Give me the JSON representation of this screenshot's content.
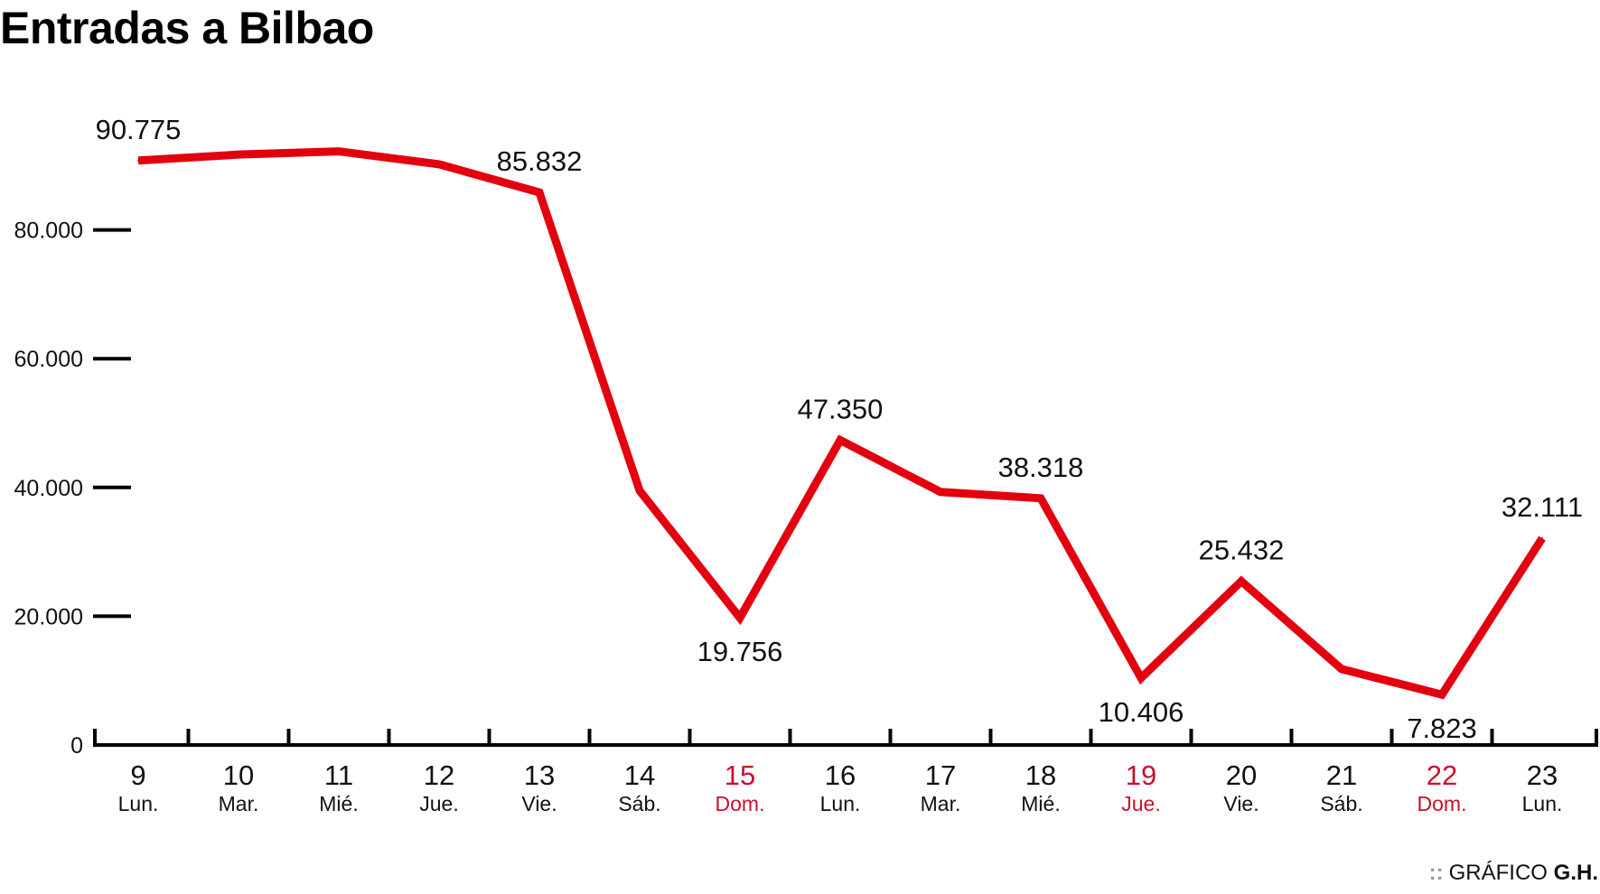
{
  "chart_data": {
    "type": "line",
    "title": "Entradas a Bilbao",
    "xlabel": "",
    "ylabel": "",
    "ylim": [
      0,
      95000
    ],
    "yticks": [
      0,
      20000,
      40000,
      60000,
      80000
    ],
    "ytick_labels": [
      "0",
      "20.000",
      "40.000",
      "60.000",
      "80.000"
    ],
    "categories": [
      "9",
      "10",
      "11",
      "12",
      "13",
      "14",
      "15",
      "16",
      "17",
      "18",
      "19",
      "20",
      "21",
      "22",
      "23"
    ],
    "weekdays": [
      "Lun.",
      "Mar.",
      "Mié.",
      "Jue.",
      "Vie.",
      "Sáb.",
      "Dom.",
      "Lun.",
      "Mar.",
      "Mié.",
      "Jue.",
      "Vie.",
      "Sáb.",
      "Dom.",
      "Lun."
    ],
    "highlighted_days": [
      6,
      10,
      13
    ],
    "series": [
      {
        "values": [
          90775,
          91700,
          92200,
          90200,
          85832,
          39500,
          19756,
          47350,
          39300,
          38318,
          10406,
          25432,
          11800,
          7823,
          32111
        ]
      }
    ],
    "data_labels": [
      {
        "index": 0,
        "text": "90.775",
        "position": "above"
      },
      {
        "index": 4,
        "text": "85.832",
        "position": "above"
      },
      {
        "index": 6,
        "text": "19.756",
        "position": "below"
      },
      {
        "index": 7,
        "text": "47.350",
        "position": "above"
      },
      {
        "index": 9,
        "text": "38.318",
        "position": "above"
      },
      {
        "index": 10,
        "text": "10.406",
        "position": "below"
      },
      {
        "index": 11,
        "text": "25.432",
        "position": "above"
      },
      {
        "index": 13,
        "text": "7.823",
        "position": "below"
      },
      {
        "index": 14,
        "text": "32.111",
        "position": "above"
      }
    ],
    "grid": false,
    "colors": {
      "line": "#e3000f",
      "highlight_text": "#c8102e",
      "axis": "#000000",
      "text": "#111111"
    }
  },
  "credit": {
    "dots": "::",
    "label": "GRÁFICO",
    "author": "G.H."
  }
}
